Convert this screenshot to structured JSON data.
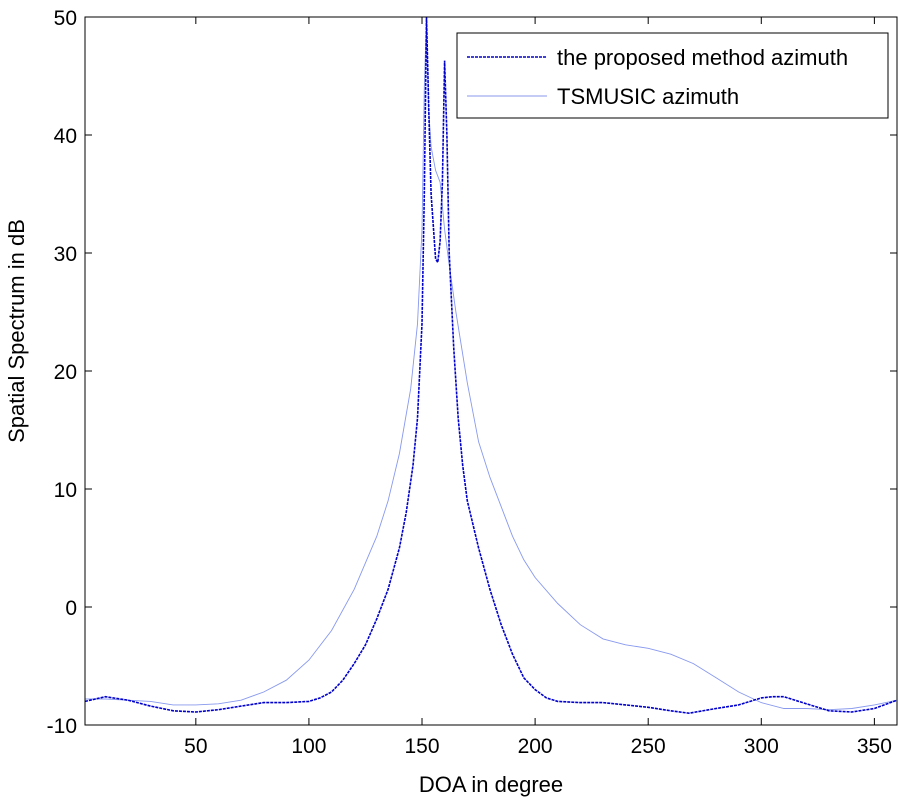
{
  "chart_data": {
    "type": "line",
    "title": "",
    "xlabel": "DOA in degree",
    "ylabel": "Spatial Spectrum in dB",
    "xlim": [
      1,
      360
    ],
    "ylim": [
      -10,
      50
    ],
    "xticks": [
      50,
      100,
      150,
      200,
      250,
      300,
      350
    ],
    "yticks": [
      -10,
      0,
      10,
      20,
      30,
      40,
      50
    ],
    "grid": false,
    "legend_position": "top-right",
    "series": [
      {
        "name": "the proposed method azimuth",
        "color": "#0000cc",
        "style": "dotted-dark",
        "points": [
          [
            1,
            -8.0
          ],
          [
            10,
            -7.6
          ],
          [
            20,
            -7.9
          ],
          [
            30,
            -8.4
          ],
          [
            40,
            -8.8
          ],
          [
            50,
            -8.9
          ],
          [
            60,
            -8.7
          ],
          [
            70,
            -8.4
          ],
          [
            80,
            -8.1
          ],
          [
            90,
            -8.1
          ],
          [
            100,
            -8.0
          ],
          [
            105,
            -7.7
          ],
          [
            110,
            -7.2
          ],
          [
            115,
            -6.2
          ],
          [
            120,
            -4.8
          ],
          [
            125,
            -3.2
          ],
          [
            130,
            -1.0
          ],
          [
            135,
            1.5
          ],
          [
            140,
            5.0
          ],
          [
            143,
            8.0
          ],
          [
            146,
            12.0
          ],
          [
            148,
            16.0
          ],
          [
            150,
            24.0
          ],
          [
            151,
            35.0
          ],
          [
            152,
            50.0
          ],
          [
            153,
            42.0
          ],
          [
            154,
            35.0
          ],
          [
            156,
            29.5
          ],
          [
            157,
            29.2
          ],
          [
            158,
            31.0
          ],
          [
            159,
            36.0
          ],
          [
            160,
            46.3
          ],
          [
            161,
            40.0
          ],
          [
            162,
            30.0
          ],
          [
            164,
            22.0
          ],
          [
            166,
            16.0
          ],
          [
            168,
            12.0
          ],
          [
            170,
            9.0
          ],
          [
            175,
            5.0
          ],
          [
            180,
            1.5
          ],
          [
            185,
            -1.5
          ],
          [
            190,
            -4.0
          ],
          [
            195,
            -6.0
          ],
          [
            200,
            -7.0
          ],
          [
            205,
            -7.7
          ],
          [
            210,
            -8.0
          ],
          [
            220,
            -8.1
          ],
          [
            230,
            -8.1
          ],
          [
            240,
            -8.3
          ],
          [
            250,
            -8.5
          ],
          [
            260,
            -8.8
          ],
          [
            268,
            -9.0
          ],
          [
            280,
            -8.6
          ],
          [
            290,
            -8.3
          ],
          [
            300,
            -7.7
          ],
          [
            305,
            -7.6
          ],
          [
            310,
            -7.6
          ],
          [
            320,
            -8.2
          ],
          [
            330,
            -8.8
          ],
          [
            340,
            -8.9
          ],
          [
            350,
            -8.6
          ],
          [
            360,
            -7.9
          ]
        ]
      },
      {
        "name": "TSMUSIC azimuth",
        "color": "#8899ee",
        "style": "solid-light",
        "points": [
          [
            1,
            -7.8
          ],
          [
            10,
            -7.8
          ],
          [
            20,
            -7.9
          ],
          [
            30,
            -8.0
          ],
          [
            40,
            -8.3
          ],
          [
            50,
            -8.3
          ],
          [
            60,
            -8.2
          ],
          [
            70,
            -7.9
          ],
          [
            80,
            -7.2
          ],
          [
            90,
            -6.2
          ],
          [
            100,
            -4.5
          ],
          [
            110,
            -2.0
          ],
          [
            120,
            1.5
          ],
          [
            130,
            6.0
          ],
          [
            135,
            9.0
          ],
          [
            140,
            13.0
          ],
          [
            145,
            18.5
          ],
          [
            148,
            24.0
          ],
          [
            150,
            32.0
          ],
          [
            151,
            44.0
          ],
          [
            152,
            50.0
          ],
          [
            153,
            42.0
          ],
          [
            154,
            39.0
          ],
          [
            156,
            37.0
          ],
          [
            158,
            36.0
          ],
          [
            160,
            32.0
          ],
          [
            162,
            29.0
          ],
          [
            165,
            25.0
          ],
          [
            170,
            19.0
          ],
          [
            175,
            14.0
          ],
          [
            180,
            11.0
          ],
          [
            185,
            8.5
          ],
          [
            190,
            6.0
          ],
          [
            195,
            4.0
          ],
          [
            200,
            2.5
          ],
          [
            210,
            0.3
          ],
          [
            220,
            -1.5
          ],
          [
            230,
            -2.7
          ],
          [
            240,
            -3.2
          ],
          [
            250,
            -3.5
          ],
          [
            260,
            -4.0
          ],
          [
            270,
            -4.8
          ],
          [
            280,
            -6.0
          ],
          [
            290,
            -7.2
          ],
          [
            300,
            -8.1
          ],
          [
            310,
            -8.6
          ],
          [
            320,
            -8.6
          ],
          [
            330,
            -8.7
          ],
          [
            340,
            -8.6
          ],
          [
            350,
            -8.3
          ],
          [
            360,
            -7.9
          ]
        ]
      }
    ]
  }
}
